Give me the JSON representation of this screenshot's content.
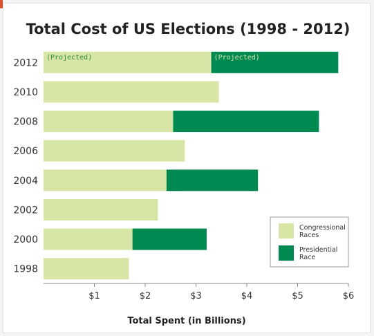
{
  "chart_data": {
    "type": "bar",
    "orientation": "horizontal",
    "stacked": true,
    "title": "Total Cost of US Elections (1998 - 2012)",
    "xlabel": "Total Spent (in Billions)",
    "ylabel": "",
    "categories": [
      "2012",
      "2010",
      "2008",
      "2006",
      "2004",
      "2002",
      "2000",
      "1998"
    ],
    "series": [
      {
        "name": "Congressional Races",
        "color": "#d7e6a7",
        "values": [
          3.3,
          3.45,
          2.55,
          2.78,
          2.42,
          2.25,
          1.75,
          1.68
        ]
      },
      {
        "name": "Presidential Race",
        "color": "#008a52",
        "values": [
          2.5,
          0,
          2.87,
          0,
          1.8,
          0,
          1.46,
          0
        ]
      }
    ],
    "xlim": [
      0,
      6
    ],
    "xticks": [
      {
        "value": 1,
        "label": "$1"
      },
      {
        "value": 2,
        "label": "$2"
      },
      {
        "value": 3,
        "label": "$3"
      },
      {
        "value": 4,
        "label": "$4"
      },
      {
        "value": 5,
        "label": "$5"
      },
      {
        "value": 6,
        "label": "$6"
      }
    ],
    "annotations": [
      {
        "category": "2012",
        "series": "Congressional Races",
        "text": "(Projected)",
        "color": "#2e8b3e"
      },
      {
        "category": "2012",
        "series": "Presidential Race",
        "text": "(Projected)",
        "color": "#d7e6a7"
      }
    ],
    "legend_position": "bottom-right",
    "legend_entries": [
      {
        "label_lines": [
          "Congressional",
          "Races"
        ],
        "color": "#d7e6a7"
      },
      {
        "label_lines": [
          "Presidential",
          "Race"
        ],
        "color": "#008a52"
      }
    ],
    "grid": false
  }
}
